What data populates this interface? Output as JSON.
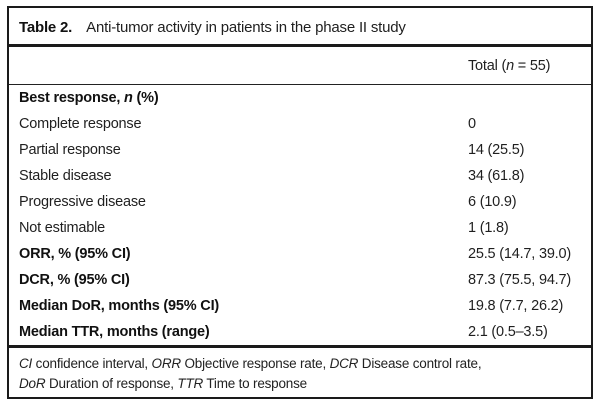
{
  "colors": {
    "background": "#ffffff",
    "border": "#1a1a1a",
    "text": "#1f1f1f"
  },
  "table": {
    "label": "Table 2.",
    "title": "Anti-tumor activity in patients in the phase II study",
    "column_header": {
      "pre": "Total (",
      "italic_n": "n",
      "post": " = 55)"
    },
    "rows": [
      {
        "label_pre": "Best response, ",
        "label_italic": "n",
        "label_post": " (%)",
        "value": ""
      },
      {
        "label": "Complete response",
        "value": "0"
      },
      {
        "label": "Partial response",
        "value": "14 (25.5)"
      },
      {
        "label": "Stable disease",
        "value": "34 (61.8)"
      },
      {
        "label": "Progressive disease",
        "value": "6 (10.9)"
      },
      {
        "label": "Not estimable",
        "value": "1 (1.8)"
      },
      {
        "label": "ORR, % (95% CI)",
        "value": "25.5 (14.7, 39.0)"
      },
      {
        "label": "DCR, % (95% CI)",
        "value": "87.3 (75.5, 94.7)"
      },
      {
        "label": "Median DoR, months (95% CI)",
        "value": "19.8 (7.7, 26.2)"
      },
      {
        "label": "Median TTR, months (range)",
        "value": "2.1 (0.5–3.5)"
      }
    ],
    "footnote": {
      "line1": [
        {
          "abbr": "CI",
          "text": " confidence interval, "
        },
        {
          "abbr": "ORR",
          "text": " Objective response rate, "
        },
        {
          "abbr": "DCR",
          "text": " Disease control rate,"
        }
      ],
      "line2": [
        {
          "abbr": "DoR",
          "text": " Duration of response, "
        },
        {
          "abbr": "TTR",
          "text": " Time to response"
        }
      ]
    }
  }
}
